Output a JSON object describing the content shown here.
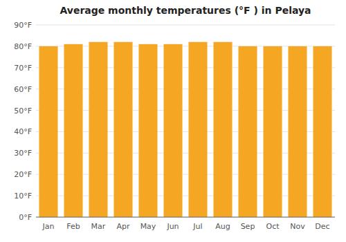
{
  "chart_data": {
    "type": "bar",
    "title": "Average monthly temperatures (°F ) in Pelaya",
    "categories": [
      "Jan",
      "Feb",
      "Mar",
      "Apr",
      "May",
      "Jun",
      "Jul",
      "Aug",
      "Sep",
      "Oct",
      "Nov",
      "Dec"
    ],
    "values": [
      80,
      81,
      82,
      82,
      81,
      81,
      82,
      82,
      80,
      80,
      80,
      80
    ],
    "color": "#F5A623",
    "ylim": [
      0,
      90
    ],
    "yticks": [
      {
        "value": 0,
        "label": "0°F"
      },
      {
        "value": 10,
        "label": "10°F"
      },
      {
        "value": 20,
        "label": "20°F"
      },
      {
        "value": 30,
        "label": "30°F"
      },
      {
        "value": 40,
        "label": "40°F"
      },
      {
        "value": 50,
        "label": "50°F"
      },
      {
        "value": 60,
        "label": "60°F"
      },
      {
        "value": 70,
        "label": "70°F"
      },
      {
        "value": 80,
        "label": "80°F"
      },
      {
        "value": 90,
        "label": "90°F"
      }
    ],
    "grid": true
  }
}
